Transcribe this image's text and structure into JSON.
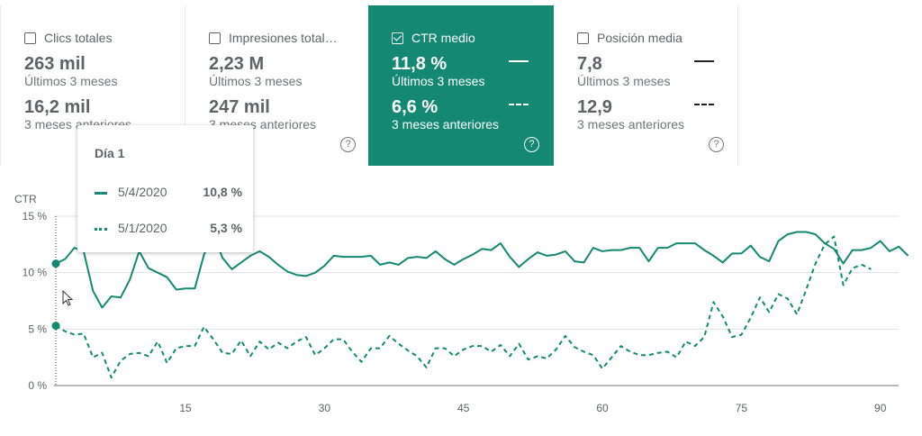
{
  "cards": [
    {
      "title": "Clics totales",
      "checked": false,
      "current": "263 mil",
      "current_label": "Últimos 3 meses",
      "previous": "16,2 mil",
      "previous_label": "3 meses anteriores"
    },
    {
      "title": "Impresiones total…",
      "checked": false,
      "current": "2,23 M",
      "current_label": "Últimos 3 meses",
      "previous": "247 mil",
      "previous_label": "3 meses anteriores"
    },
    {
      "title": "CTR medio",
      "checked": true,
      "current": "11,8 %",
      "current_label": "Últimos 3 meses",
      "previous": "6,6 %",
      "previous_label": "3 meses anteriores"
    },
    {
      "title": "Posición media",
      "checked": false,
      "current": "7,8",
      "current_label": "Últimos 3 meses",
      "previous": "12,9",
      "previous_label": "3 meses anteriores"
    }
  ],
  "help_glyph": "?",
  "tooltip": {
    "title": "Día 1",
    "rows": [
      {
        "date": "5/4/2020",
        "value": "10,8 %"
      },
      {
        "date": "5/1/2020",
        "value": "5,3 %"
      }
    ]
  },
  "chart_data": {
    "type": "line",
    "ylabel": "CTR",
    "yticks": [
      "15 %",
      "10 %",
      "5 %",
      "0 %"
    ],
    "ytick_values": [
      15,
      10,
      5,
      0
    ],
    "xticks": [
      "15",
      "30",
      "45",
      "60",
      "75",
      "90"
    ],
    "xtick_values": [
      15,
      30,
      45,
      60,
      75,
      90
    ],
    "xlim": [
      1,
      91
    ],
    "ylim": [
      0,
      15
    ],
    "grid": true,
    "colors": {
      "series": "#148873",
      "grid": "#e0e0e0",
      "axis": "#757575"
    },
    "series": [
      {
        "style": "solid",
        "values": [
          10.8,
          11.2,
          12.2,
          11.9,
          8.4,
          6.9,
          7.9,
          7.8,
          9.4,
          11.9,
          10.4,
          10.0,
          9.6,
          8.5,
          8.6,
          8.6,
          11.6,
          13.4,
          11.3,
          10.3,
          10.9,
          11.5,
          11.9,
          11.4,
          10.7,
          10.1,
          9.8,
          9.7,
          10.0,
          10.6,
          11.5,
          11.4,
          11.4,
          11.4,
          11.5,
          10.7,
          10.9,
          10.7,
          11.3,
          11.4,
          11.3,
          11.9,
          11.2,
          10.7,
          11.2,
          11.6,
          12.1,
          12.0,
          12.6,
          11.4,
          10.5,
          11.2,
          11.8,
          11.5,
          11.6,
          11.9,
          11.0,
          10.9,
          12.2,
          11.9,
          12.0,
          12.0,
          12.2,
          12.2,
          11.0,
          12.2,
          12.2,
          12.6,
          12.6,
          12.6,
          12.0,
          11.5,
          10.9,
          11.7,
          11.7,
          12.4,
          11.4,
          11.0,
          12.8,
          13.4,
          13.6,
          13.6,
          13.4,
          12.6,
          12.1,
          10.8,
          12.0,
          12.0,
          12.2,
          12.8,
          11.9,
          12.3,
          11.5
        ]
      },
      {
        "style": "dashed",
        "values": [
          5.3,
          4.8,
          4.5,
          4.6,
          2.5,
          2.9,
          0.7,
          2.2,
          2.8,
          2.9,
          2.6,
          3.9,
          2.0,
          3.3,
          3.5,
          3.5,
          5.2,
          4.1,
          2.9,
          2.8,
          4.0,
          2.6,
          3.9,
          3.2,
          3.8,
          3.3,
          3.9,
          4.3,
          2.7,
          3.3,
          4.1,
          4.1,
          3.0,
          2.1,
          3.3,
          3.3,
          4.4,
          3.7,
          3.1,
          2.6,
          1.6,
          3.3,
          3.3,
          2.6,
          3.2,
          3.5,
          3.5,
          3.0,
          3.6,
          2.6,
          3.7,
          2.3,
          2.6,
          2.4,
          3.2,
          4.4,
          3.4,
          3.0,
          2.7,
          1.5,
          2.5,
          3.5,
          3.0,
          2.7,
          2.7,
          2.9,
          3.0,
          2.5,
          3.9,
          3.5,
          4.3,
          7.4,
          6.1,
          4.3,
          4.5,
          6.0,
          7.8,
          6.5,
          8.1,
          7.7,
          6.3,
          8.5,
          10.8,
          12.5,
          13.2,
          8.9,
          10.4,
          10.7,
          10.3
        ]
      }
    ],
    "hover_index": 1
  }
}
